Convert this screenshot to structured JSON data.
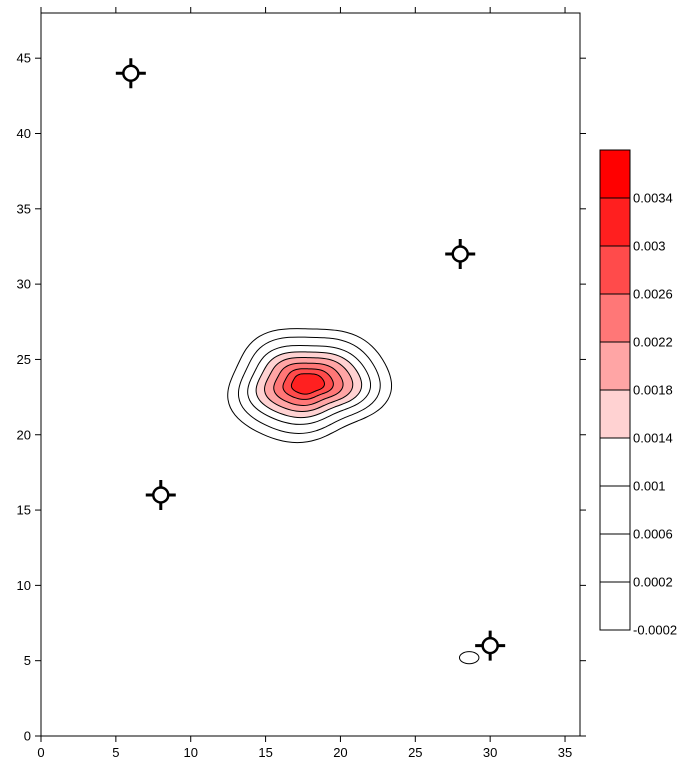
{
  "chart_data": {
    "type": "contour",
    "title": "",
    "xlabel": "",
    "ylabel": "",
    "xlim": [
      0,
      36
    ],
    "ylim": [
      0,
      48
    ],
    "x_ticks": [
      0,
      5,
      10,
      15,
      20,
      25,
      30,
      35
    ],
    "y_ticks": [
      0,
      5,
      10,
      15,
      20,
      25,
      30,
      35,
      40,
      45
    ],
    "grid": false,
    "wells": [
      {
        "x": 6,
        "y": 44
      },
      {
        "x": 28,
        "y": 32
      },
      {
        "x": 8,
        "y": 16
      },
      {
        "x": 30,
        "y": 6
      }
    ],
    "contour_center": {
      "x": 17.8,
      "y": 23.4
    },
    "contours": [
      {
        "level": 0.0002,
        "rx": 5.2,
        "ry": 3.9,
        "color": "#ffffff"
      },
      {
        "level": 0.0006,
        "rx": 4.5,
        "ry": 3.3,
        "color": "#ffffff"
      },
      {
        "level": 0.001,
        "rx": 3.9,
        "ry": 2.7,
        "color": "#ffffff"
      },
      {
        "level": 0.0014,
        "rx": 3.35,
        "ry": 2.25,
        "color": "#ffd2d2"
      },
      {
        "level": 0.0018,
        "rx": 2.8,
        "ry": 1.85,
        "color": "#ffa5a5"
      },
      {
        "level": 0.0022,
        "rx": 2.2,
        "ry": 1.45,
        "color": "#ff7777"
      },
      {
        "level": 0.0026,
        "rx": 1.6,
        "ry": 1.05,
        "color": "#ff4b4b"
      },
      {
        "level": 0.003,
        "rx": 1.05,
        "ry": 0.7,
        "color": "#ff2020"
      }
    ],
    "minor_contour": {
      "x": 28.6,
      "y": 5.2,
      "rx": 0.65,
      "ry": 0.4,
      "level": 0.0002
    },
    "colorbar": {
      "labels": [
        "0.0034",
        "0.003",
        "0.0026",
        "0.0022",
        "0.0018",
        "0.0014",
        "0.001",
        "0.0006",
        "0.0002",
        "-0.0002"
      ],
      "bands": [
        "#ff0000",
        "#ff1f1f",
        "#ff4b4b",
        "#ff7777",
        "#ffa5a5",
        "#ffd2d2",
        "#ffffff",
        "#ffffff",
        "#ffffff",
        "#ffffff"
      ]
    }
  }
}
